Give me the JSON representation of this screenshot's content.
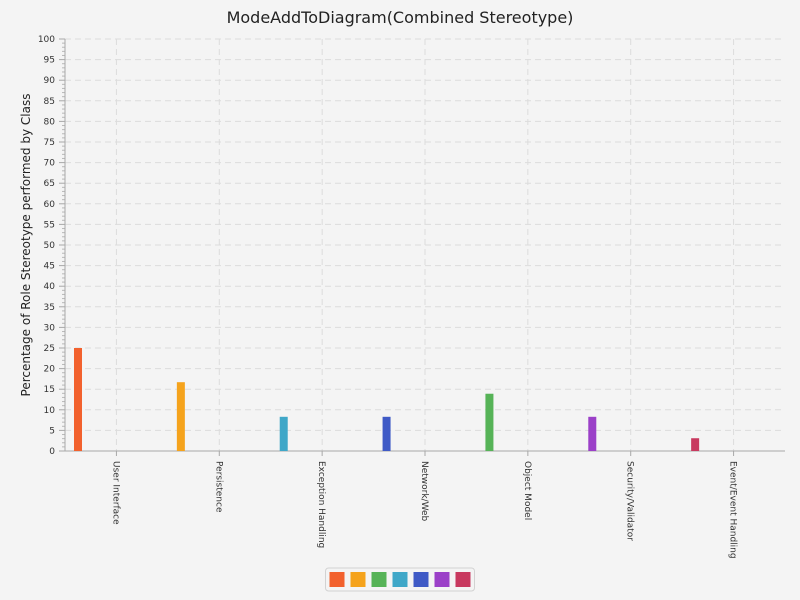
{
  "chart_data": {
    "type": "bar",
    "title": "ModeAddToDiagram(Combined Stereotype)",
    "xlabel": "",
    "ylabel": "Percentage of Role Stereotype performed by Class",
    "ylim": [
      0,
      100
    ],
    "ytick_step": 5,
    "grid": true,
    "legend_position": "bottom",
    "categories": [
      "User Interface",
      "Persistence",
      "Exception Handling",
      "Network/Web",
      "Object Model",
      "Security/Validator",
      "Event/Event Handling"
    ],
    "series": [
      {
        "color": "#f2612d",
        "values": [
          25,
          0,
          0,
          0,
          0,
          0,
          0
        ]
      },
      {
        "color": "#f5a31c",
        "values": [
          0,
          16.7,
          0,
          0,
          0,
          0,
          0
        ]
      },
      {
        "color": "#56b357",
        "values": [
          0,
          0,
          0,
          0,
          13.9,
          0,
          0
        ]
      },
      {
        "color": "#3fa7c8",
        "values": [
          0,
          0,
          8.3,
          0,
          0,
          0,
          0
        ]
      },
      {
        "color": "#3f5ac6",
        "values": [
          0,
          0,
          0,
          8.3,
          0,
          0,
          0
        ]
      },
      {
        "color": "#9b40c8",
        "values": [
          0,
          0,
          0,
          0,
          0,
          8.3,
          0
        ]
      },
      {
        "color": "#c8395f",
        "values": [
          0,
          0,
          0,
          0,
          0,
          0,
          3.1
        ]
      }
    ]
  }
}
